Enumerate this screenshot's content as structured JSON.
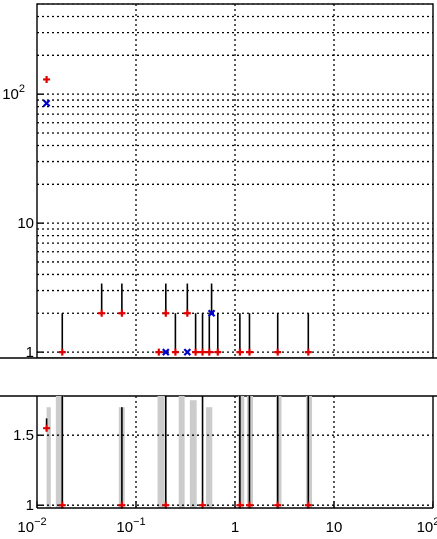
{
  "chart_data": [
    {
      "type": "scatter",
      "panel": "top",
      "x_scale": "log",
      "y_scale": "log",
      "xlim": [
        0.01,
        100
      ],
      "ylim": [
        0.9,
        500
      ],
      "grid": true,
      "grid_style": "dotted",
      "y_ticks": [
        {
          "value": 1,
          "label": "1"
        },
        {
          "value": 10,
          "label": "10"
        },
        {
          "value": 100,
          "label": "10",
          "sup": "2"
        }
      ],
      "series": [
        {
          "color": "#e00000",
          "marker": "plus",
          "points": [
            {
              "x": 0.0125,
              "y": 130
            },
            {
              "x": 0.018,
              "y": 1,
              "err_hi": 2.0
            },
            {
              "x": 0.045,
              "y": 2,
              "err_hi": 3.4
            },
            {
              "x": 0.072,
              "y": 2,
              "err_hi": 3.4
            },
            {
              "x": 0.17,
              "y": 1
            },
            {
              "x": 0.2,
              "y": 2,
              "err_hi": 3.4
            },
            {
              "x": 0.25,
              "y": 1,
              "err_hi": 2.0
            },
            {
              "x": 0.33,
              "y": 2,
              "err_hi": 3.4
            },
            {
              "x": 0.4,
              "y": 1,
              "err_hi": 2.0
            },
            {
              "x": 0.47,
              "y": 1,
              "err_hi": 2.0
            },
            {
              "x": 0.55,
              "y": 1,
              "err_hi": 2.0
            },
            {
              "x": 0.67,
              "y": 1,
              "err_hi": 2.0
            },
            {
              "x": 1.12,
              "y": 1,
              "err_hi": 2.0
            },
            {
              "x": 1.4,
              "y": 1,
              "err_hi": 2.0
            },
            {
              "x": 2.7,
              "y": 1,
              "err_hi": 2.0
            },
            {
              "x": 5.5,
              "y": 1,
              "err_hi": 2.0
            }
          ]
        },
        {
          "color": "#0000cc",
          "marker": "x",
          "points": [
            {
              "x": 0.0125,
              "y": 85
            },
            {
              "x": 0.2,
              "y": 1
            },
            {
              "x": 0.33,
              "y": 1
            },
            {
              "x": 0.58,
              "y": 2,
              "err_hi": 3.4
            }
          ]
        }
      ]
    },
    {
      "type": "scatter",
      "panel": "bottom",
      "x_scale": "log",
      "xlim": [
        0.01,
        100
      ],
      "ylim": [
        0.98,
        1.78
      ],
      "grid": true,
      "grid_style": "dotted",
      "x_ticks": [
        {
          "value": 0.01,
          "label": "10",
          "sup": "−2"
        },
        {
          "value": 0.1,
          "label": "10",
          "sup": "−1"
        },
        {
          "value": 1,
          "label": "1"
        },
        {
          "value": 10,
          "label": "10"
        },
        {
          "value": 100,
          "label": "10",
          "sup": "2"
        }
      ],
      "y_ticks": [
        {
          "value": 1,
          "label": "1"
        },
        {
          "value": 1.5,
          "label": "1.5"
        }
      ],
      "bands": [
        {
          "x0": 0.0125,
          "x1": 0.0138,
          "y": 1.7
        },
        {
          "x0": 0.0155,
          "x1": 0.0185,
          "y": 1.78
        },
        {
          "x0": 0.067,
          "x1": 0.077,
          "y": 1.7
        },
        {
          "x0": 0.165,
          "x1": 0.195,
          "y": 1.78
        },
        {
          "x0": 0.27,
          "x1": 0.31,
          "y": 1.78
        },
        {
          "x0": 0.35,
          "x1": 0.41,
          "y": 1.75
        },
        {
          "x0": 0.51,
          "x1": 0.59,
          "y": 1.7
        },
        {
          "x0": 1.08,
          "x1": 1.24,
          "y": 1.78
        },
        {
          "x0": 1.32,
          "x1": 1.52,
          "y": 1.78
        },
        {
          "x0": 2.6,
          "x1": 2.95,
          "y": 1.78
        },
        {
          "x0": 5.2,
          "x1": 6.0,
          "y": 1.78
        }
      ],
      "points": [
        {
          "x": 0.0125,
          "y": 1.55,
          "err_hi": 1.62
        },
        {
          "x": 0.018,
          "y": 1.0,
          "err_hi": 1.78
        },
        {
          "x": 0.072,
          "y": 1.0,
          "err_hi": 1.7
        },
        {
          "x": 0.2,
          "y": 1.0,
          "err_hi": 1.78
        },
        {
          "x": 0.47,
          "y": 1.0,
          "err_hi": 1.78
        },
        {
          "x": 1.12,
          "y": 1.0,
          "err_hi": 1.78
        },
        {
          "x": 1.4,
          "y": 1.0,
          "err_hi": 1.78
        },
        {
          "x": 2.7,
          "y": 1.0,
          "err_hi": 1.78
        },
        {
          "x": 5.5,
          "y": 1.0,
          "err_hi": 1.78
        }
      ],
      "point_color": "#e00000"
    }
  ]
}
